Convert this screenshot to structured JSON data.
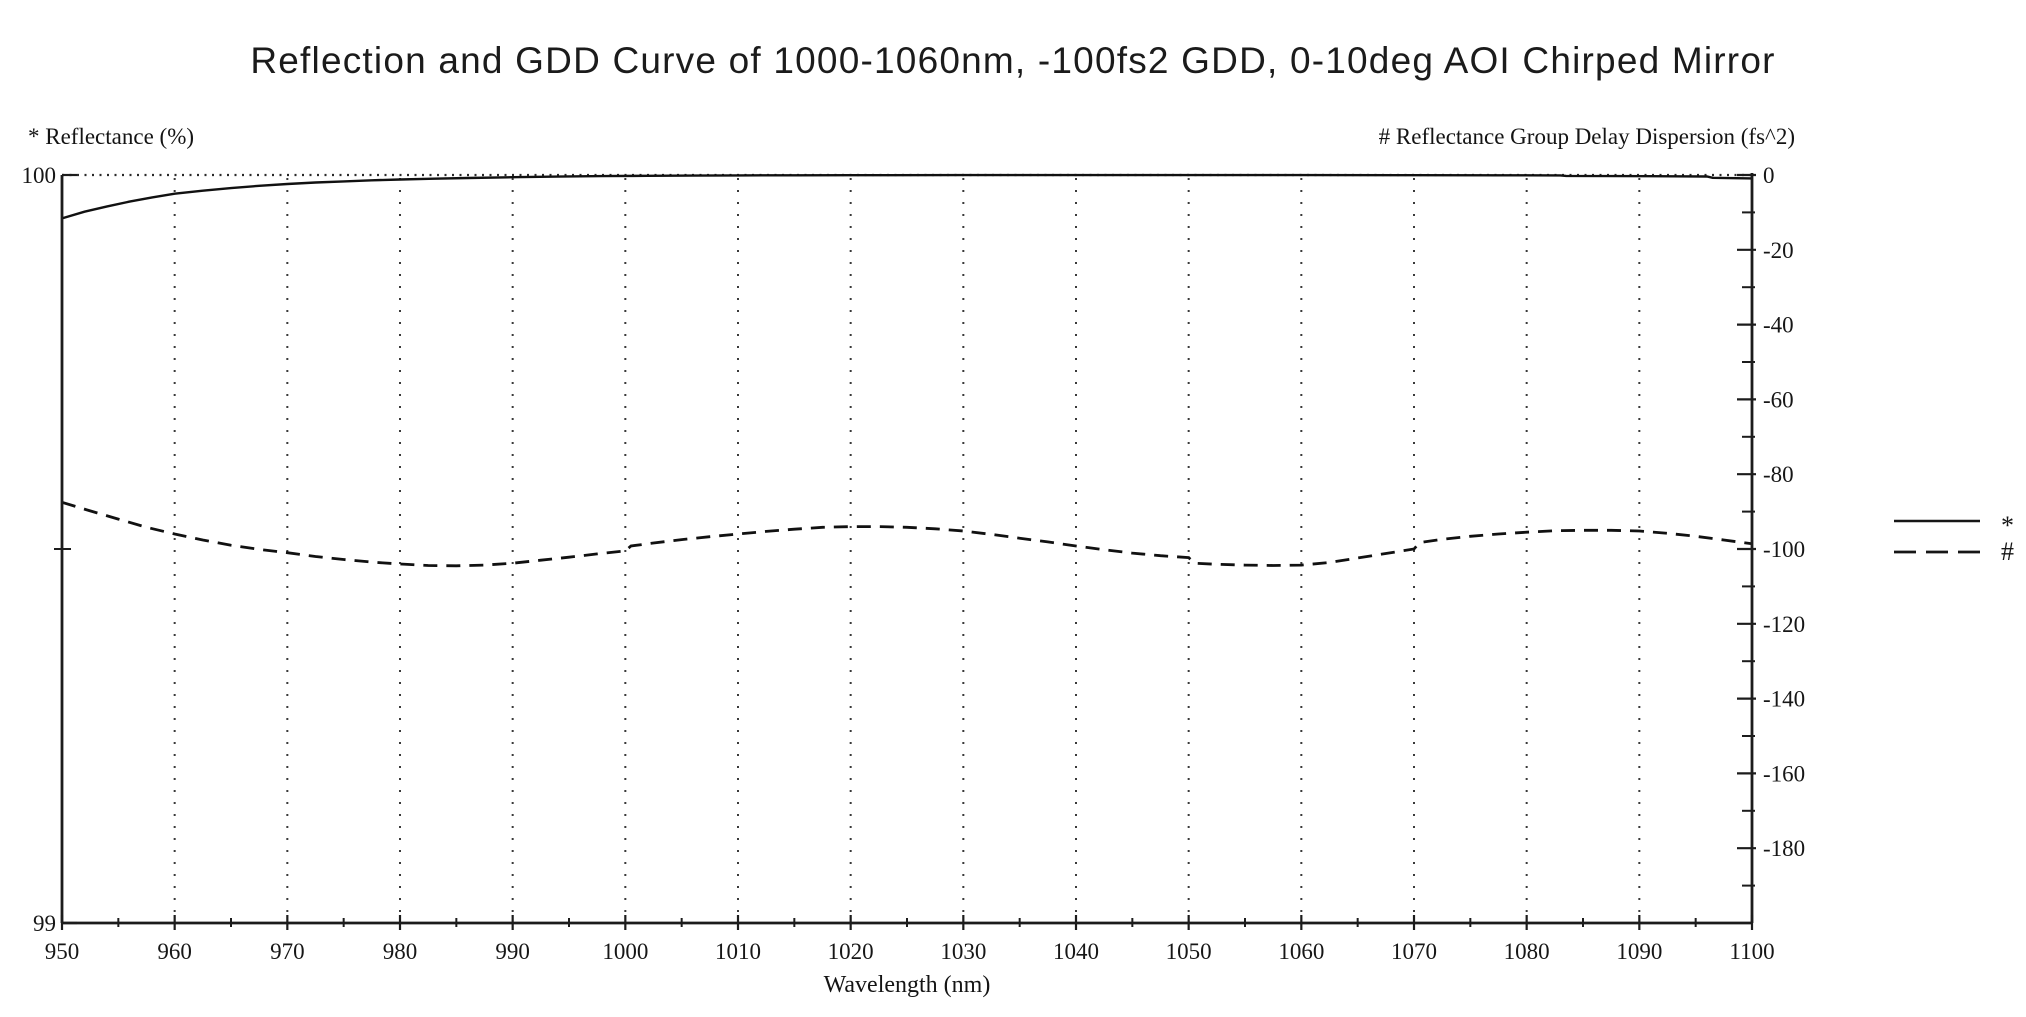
{
  "chart_data": {
    "type": "line",
    "title": "Reflection and GDD Curve of 1000-1060nm, -100fs2 GDD, 0-10deg AOI Chirped Mirror",
    "x_axis": {
      "label": "Wavelength (nm)",
      "min": 950,
      "max": 1100,
      "major_tick_step": 10,
      "minor_tick_step": 5,
      "ticks": [
        950,
        960,
        970,
        980,
        990,
        1000,
        1010,
        1020,
        1030,
        1040,
        1050,
        1060,
        1070,
        1080,
        1090,
        1100
      ],
      "gridlines": [
        960,
        970,
        980,
        990,
        1000,
        1010,
        1020,
        1030,
        1040,
        1050,
        1060,
        1070,
        1080,
        1090
      ],
      "grid_style": "dotted"
    },
    "left_axis": {
      "label": "* Reflectance (%)",
      "min": 99,
      "max": 100,
      "ticks": [
        100,
        99
      ],
      "minor_ticks": [
        99.5
      ],
      "gridlines": [
        100
      ],
      "grid_style": "dotted"
    },
    "right_axis": {
      "label": "# Reflectance Group Delay Dispersion (fs^2)",
      "min": -200,
      "max": 0,
      "major_tick_step": 20,
      "minor_tick_step": 10,
      "ticks": [
        0,
        -20,
        -40,
        -60,
        -80,
        -100,
        -120,
        -140,
        -160,
        -180
      ]
    },
    "legend": {
      "position": "right-middle",
      "entries": [
        {
          "symbol": "*",
          "line": "solid",
          "series": "Reflectance (%)"
        },
        {
          "symbol": "#",
          "line": "dashed",
          "series": "Reflectance Group Delay Dispersion (fs^2)"
        }
      ]
    },
    "series": [
      {
        "name": "Reflectance (%)",
        "symbol": "*",
        "axis": "left",
        "line": "solid",
        "color": "#111111",
        "x": [
          950,
          952,
          954,
          956,
          958,
          960,
          962.5,
          965,
          967.5,
          970,
          972.5,
          975,
          977.5,
          980,
          983,
          986,
          990,
          994,
          998,
          1002,
          1006,
          1010,
          1015,
          1020,
          1030,
          1040,
          1050,
          1060,
          1070,
          1078,
          1083,
          1083.5,
          1088,
          1093,
          1096,
          1096.5,
          1100
        ],
        "y": [
          99.942,
          99.951,
          99.958,
          99.9645,
          99.97,
          99.975,
          99.979,
          99.9825,
          99.9855,
          99.988,
          99.99,
          99.9915,
          99.9929,
          99.994,
          99.995,
          99.996,
          99.9971,
          99.9979,
          99.9985,
          99.9989,
          99.9992,
          99.9994,
          99.9996,
          99.9997,
          99.9998,
          99.9998,
          99.9998,
          99.9998,
          99.9997,
          99.9996,
          99.9995,
          99.9988,
          99.9985,
          99.9982,
          99.998,
          99.9962,
          99.9955
        ]
      },
      {
        "name": "Reflectance Group Delay Dispersion (fs^2)",
        "symbol": "#",
        "axis": "right",
        "line": "dashed",
        "color": "#111111",
        "x": [
          950,
          952.5,
          955,
          957.5,
          960,
          962.5,
          965,
          967.5,
          970,
          972.5,
          975,
          977.5,
          980,
          982.5,
          985,
          987.5,
          990,
          992.5,
          995,
          997.5,
          1000,
          1000.5,
          1002.5,
          1005,
          1007.5,
          1010,
          1012.5,
          1015,
          1017.5,
          1020,
          1022.5,
          1025,
          1027.5,
          1030,
          1032.5,
          1035,
          1037.5,
          1040,
          1042.5,
          1045,
          1047.5,
          1050,
          1050.5,
          1052.5,
          1055,
          1057.5,
          1060,
          1062.5,
          1065,
          1067.5,
          1070,
          1070.5,
          1072.5,
          1075,
          1077.5,
          1080,
          1082.5,
          1085,
          1087.5,
          1090,
          1092.5,
          1095,
          1097.5,
          1100
        ],
        "y": [
          -87.5,
          -89.8,
          -92,
          -94.2,
          -96,
          -97.6,
          -99,
          -100.1,
          -101,
          -102,
          -102.8,
          -103.5,
          -104,
          -104.4,
          -104.5,
          -104.3,
          -103.8,
          -103,
          -102.2,
          -101.3,
          -100.5,
          -99.2,
          -98.4,
          -97.5,
          -96.7,
          -96,
          -95.3,
          -94.7,
          -94.2,
          -94,
          -94,
          -94.2,
          -94.6,
          -95.2,
          -96.1,
          -97.1,
          -98.1,
          -99.2,
          -100.2,
          -101.1,
          -101.8,
          -102.3,
          -103.8,
          -104.1,
          -104.3,
          -104.4,
          -104.3,
          -103.6,
          -102.4,
          -101.2,
          -100,
          -98.3,
          -97.4,
          -96.6,
          -96,
          -95.5,
          -95.1,
          -95,
          -95,
          -95.2,
          -95.8,
          -96.6,
          -97.6,
          -98.6
        ]
      }
    ]
  }
}
